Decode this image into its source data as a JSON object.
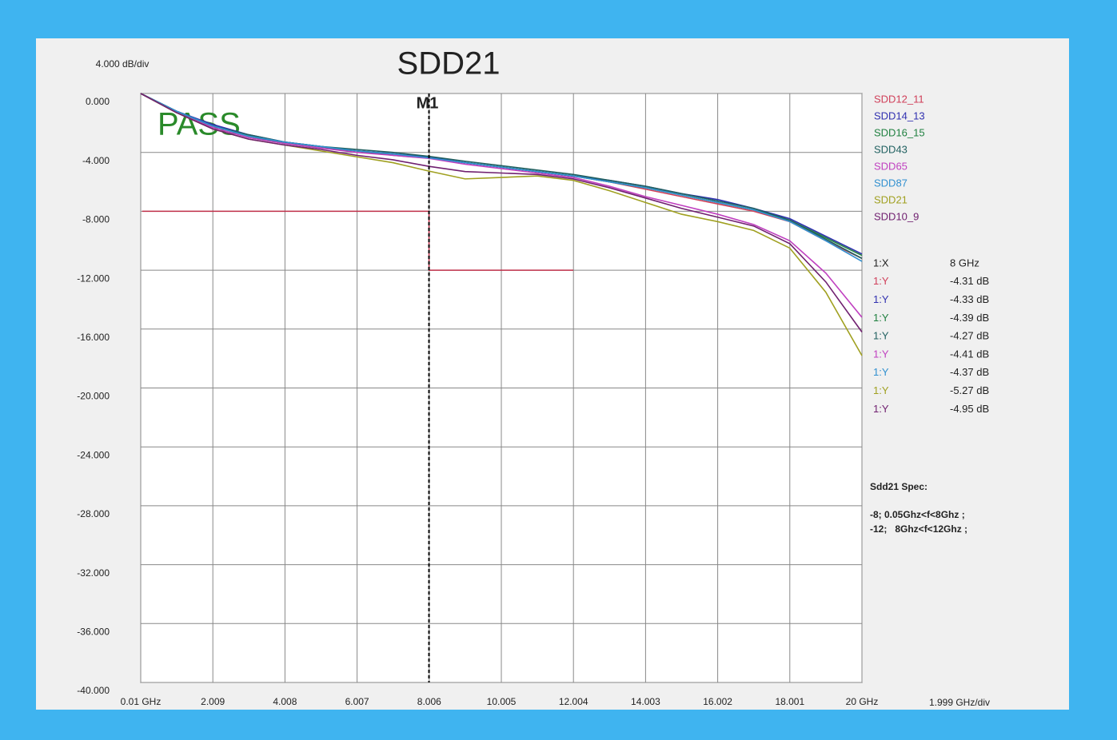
{
  "chart_data": {
    "type": "line",
    "title": "SDD21",
    "y_scale_label": "4.000 dB/div",
    "x_scale_label": "1.999 GHz/div",
    "annotation": "PASS",
    "grid": true,
    "xlim": [
      0.01,
      20
    ],
    "ylim": [
      -40,
      0
    ],
    "xticks": [
      {
        "value": 0.01,
        "label": "0.01 GHz"
      },
      2.009,
      4.008,
      6.007,
      8.006,
      10.005,
      12.004,
      14.003,
      16.002,
      18.001,
      {
        "value": 20,
        "label": "20 GHz"
      }
    ],
    "yticks": [
      {
        "value": 0,
        "label": "0.000"
      },
      {
        "value": -4,
        "label": "-4.000"
      },
      {
        "value": -8,
        "label": "-8.000"
      },
      {
        "value": -12,
        "label": "-12.000"
      },
      {
        "value": -16,
        "label": "-16.000"
      },
      {
        "value": -20,
        "label": "-20.000"
      },
      {
        "value": -24,
        "label": "-24.000"
      },
      {
        "value": -28,
        "label": "-28.000"
      },
      {
        "value": -32,
        "label": "-32.000"
      },
      {
        "value": -36,
        "label": "-36.000"
      },
      {
        "value": -40,
        "label": "-40.000"
      }
    ],
    "x": [
      0.01,
      1,
      2,
      3,
      4,
      5,
      6,
      7,
      8,
      9,
      10,
      11,
      12,
      13,
      14,
      15,
      16,
      17,
      18,
      19,
      20
    ],
    "series": [
      {
        "name": "SDD12_11",
        "color": "#d0405a",
        "values": [
          0,
          -1.2,
          -2.2,
          -2.9,
          -3.3,
          -3.6,
          -3.9,
          -4.1,
          -4.31,
          -4.7,
          -5.0,
          -5.3,
          -5.6,
          -6.0,
          -6.5,
          -7.0,
          -7.5,
          -8.0,
          -8.7,
          -10.0,
          -11.2
        ]
      },
      {
        "name": "SDD14_13",
        "color": "#3030b0",
        "values": [
          0,
          -1.2,
          -2.1,
          -2.8,
          -3.3,
          -3.6,
          -3.9,
          -4.1,
          -4.33,
          -4.7,
          -5.0,
          -5.3,
          -5.6,
          -5.9,
          -6.3,
          -6.8,
          -7.2,
          -7.8,
          -8.5,
          -9.7,
          -10.9
        ]
      },
      {
        "name": "SDD16_15",
        "color": "#208040",
        "values": [
          0,
          -1.3,
          -2.2,
          -2.9,
          -3.4,
          -3.7,
          -3.9,
          -4.2,
          -4.39,
          -4.7,
          -5.0,
          -5.3,
          -5.6,
          -6.0,
          -6.4,
          -6.9,
          -7.4,
          -7.9,
          -8.6,
          -9.8,
          -11.0
        ]
      },
      {
        "name": "SDD43",
        "color": "#206060",
        "values": [
          0,
          -1.2,
          -2.2,
          -2.8,
          -3.3,
          -3.6,
          -3.8,
          -4.0,
          -4.27,
          -4.6,
          -4.9,
          -5.2,
          -5.5,
          -5.9,
          -6.3,
          -6.8,
          -7.3,
          -7.8,
          -8.6,
          -9.9,
          -11.2
        ]
      },
      {
        "name": "SDD65",
        "color": "#c040c0",
        "values": [
          0,
          -1.3,
          -2.3,
          -3.0,
          -3.4,
          -3.7,
          -4.0,
          -4.2,
          -4.41,
          -4.8,
          -5.1,
          -5.4,
          -5.7,
          -6.3,
          -7.0,
          -7.6,
          -8.2,
          -8.9,
          -10.0,
          -12.2,
          -15.2
        ]
      },
      {
        "name": "SDD87",
        "color": "#3090d0",
        "values": [
          0,
          -1.2,
          -2.2,
          -2.9,
          -3.3,
          -3.6,
          -3.9,
          -4.1,
          -4.37,
          -4.7,
          -5.0,
          -5.3,
          -5.6,
          -6.0,
          -6.4,
          -6.9,
          -7.4,
          -7.9,
          -8.7,
          -10.0,
          -11.4
        ]
      },
      {
        "name": "SDD21",
        "color": "#a0a020",
        "values": [
          0,
          -1.3,
          -2.4,
          -3.1,
          -3.5,
          -3.9,
          -4.3,
          -4.7,
          -5.27,
          -5.8,
          -5.7,
          -5.6,
          -5.9,
          -6.6,
          -7.4,
          -8.2,
          -8.7,
          -9.3,
          -10.5,
          -13.5,
          -17.8
        ]
      },
      {
        "name": "SDD10_9",
        "color": "#702070",
        "values": [
          0,
          -1.3,
          -2.4,
          -3.1,
          -3.5,
          -3.8,
          -4.2,
          -4.5,
          -4.95,
          -5.3,
          -5.4,
          -5.5,
          -5.8,
          -6.4,
          -7.1,
          -7.8,
          -8.4,
          -9.0,
          -10.2,
          -12.8,
          -16.2
        ]
      }
    ],
    "limit": {
      "color": "#c0304a",
      "x": [
        0.05,
        8,
        8,
        12
      ],
      "y": [
        -8,
        -8,
        -12,
        -12
      ]
    },
    "marker": {
      "label": "M1",
      "x": 8
    },
    "readout": [
      {
        "label": "1:X",
        "value": "8 GHz"
      },
      {
        "label": "1:Y",
        "value": "-4.31 dB"
      },
      {
        "label": "1:Y",
        "value": "-4.33 dB"
      },
      {
        "label": "1:Y",
        "value": "-4.39 dB"
      },
      {
        "label": "1:Y",
        "value": "-4.27 dB"
      },
      {
        "label": "1:Y",
        "value": "-4.41 dB"
      },
      {
        "label": "1:Y",
        "value": "-4.37 dB"
      },
      {
        "label": "1:Y",
        "value": "-5.27 dB"
      },
      {
        "label": "1:Y",
        "value": "-4.95 dB"
      }
    ],
    "spec_title": "Sdd21 Spec:",
    "spec_lines": [
      "-8; 0.05Ghz<f<8Ghz ;",
      "-12;   8Ghz<f<12Ghz ;"
    ]
  }
}
